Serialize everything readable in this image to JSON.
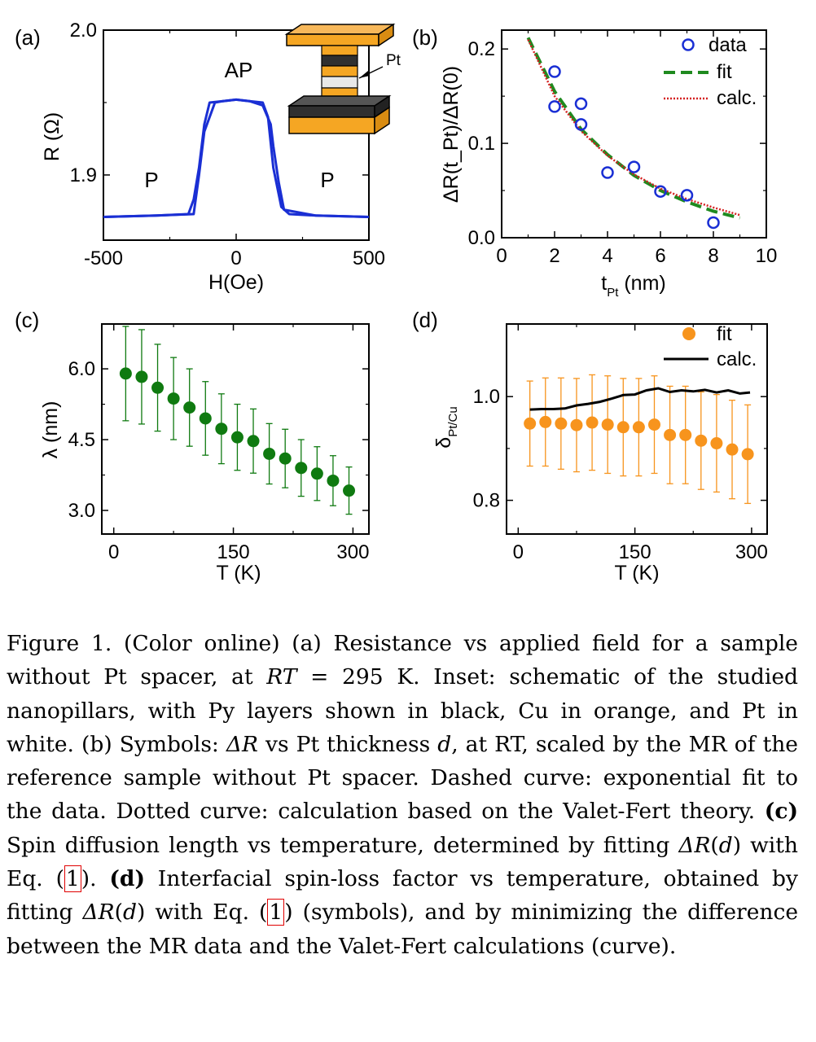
{
  "panels": {
    "a": {
      "label": "(a)",
      "xlabel": "H(Oe)",
      "ylabel": "R (Ω)",
      "annotations": [
        "AP",
        "P",
        "P"
      ],
      "inset_label": "Pt",
      "colors": {
        "line": "#1a2fd4",
        "cu": "#f5a623",
        "py": "#303030",
        "pt": "#e8e8e8"
      }
    },
    "b": {
      "label": "(b)",
      "xlabel": "t",
      "xlabel_sub": "Pt",
      "xlabel_unit": " (nm)",
      "ylabel": "ΔR(t_Pt)/ΔR(0)",
      "legend": [
        "data",
        "fit",
        "calc."
      ],
      "colors": {
        "data": "#1a2fd4",
        "fit": "#1f8a1f",
        "calc": "#d42020"
      }
    },
    "c": {
      "label": "(c)",
      "xlabel": "T (K)",
      "ylabel": "λ (nm)",
      "colors": {
        "marker": "#0f7a10"
      }
    },
    "d": {
      "label": "(d)",
      "xlabel": "T (K)",
      "ylabel": "δ",
      "ylabel_sub": "Pt/Cu",
      "legend": [
        "fit",
        "calc."
      ],
      "colors": {
        "marker": "#f7941d",
        "calc": "#000000"
      }
    }
  },
  "chart_data": [
    {
      "id": "a",
      "type": "line",
      "xlim": [
        -500,
        500
      ],
      "ylim": [
        1.855,
        2.0
      ],
      "xticks": [
        -500,
        0,
        500
      ],
      "yticks": [
        1.9,
        2.0
      ],
      "series": [
        {
          "x": [
            -500,
            -300,
            -180,
            -160,
            -140,
            -120,
            -100,
            -50,
            0,
            50,
            100,
            130,
            140,
            160,
            180,
            300,
            500
          ],
          "y": [
            1.871,
            1.872,
            1.873,
            1.883,
            1.905,
            1.935,
            1.95,
            1.951,
            1.952,
            1.951,
            1.948,
            1.935,
            1.92,
            1.895,
            1.876,
            1.872,
            1.871
          ]
        },
        {
          "x": [
            -500,
            -300,
            -160,
            -140,
            -120,
            -80,
            -50,
            0,
            50,
            100,
            120,
            140,
            170,
            200,
            300,
            500
          ],
          "y": [
            1.871,
            1.872,
            1.873,
            1.9,
            1.93,
            1.95,
            1.951,
            1.952,
            1.951,
            1.95,
            1.94,
            1.905,
            1.878,
            1.873,
            1.872,
            1.871
          ]
        }
      ]
    },
    {
      "id": "b",
      "type": "scatter",
      "xlim": [
        0,
        10
      ],
      "ylim": [
        0,
        0.22
      ],
      "xticks": [
        0,
        2,
        4,
        6,
        8,
        10
      ],
      "yticks": [
        0.0,
        0.1,
        0.2
      ],
      "series": [
        {
          "name": "data",
          "x": [
            2,
            2,
            3,
            3,
            4,
            5,
            6,
            7,
            8
          ],
          "y": [
            0.176,
            0.139,
            0.142,
            0.12,
            0.069,
            0.075,
            0.049,
            0.045,
            0.016
          ]
        },
        {
          "name": "fit",
          "type": "line",
          "x": [
            1,
            2,
            3,
            4,
            5,
            6,
            7,
            8,
            9
          ],
          "y": [
            0.212,
            0.155,
            0.115,
            0.088,
            0.066,
            0.05,
            0.038,
            0.028,
            0.021
          ]
        },
        {
          "name": "calc.",
          "type": "line",
          "x": [
            1,
            2,
            3,
            4,
            5,
            6,
            7,
            8,
            9
          ],
          "y": [
            0.21,
            0.15,
            0.113,
            0.087,
            0.067,
            0.052,
            0.041,
            0.032,
            0.024
          ]
        }
      ]
    },
    {
      "id": "c",
      "type": "scatter",
      "xlim": [
        -15,
        320
      ],
      "ylim": [
        2.5,
        6.95
      ],
      "xticks": [
        0,
        150,
        300
      ],
      "yticks": [
        3.0,
        4.5,
        6.0
      ],
      "series": [
        {
          "x": [
            15,
            35,
            55,
            75,
            95,
            115,
            135,
            155,
            175,
            195,
            215,
            235,
            255,
            275,
            295
          ],
          "y": [
            5.9,
            5.83,
            5.6,
            5.37,
            5.18,
            4.95,
            4.73,
            4.55,
            4.47,
            4.2,
            4.1,
            3.9,
            3.78,
            3.63,
            3.42
          ],
          "err": [
            1.0,
            1.0,
            0.92,
            0.87,
            0.82,
            0.78,
            0.74,
            0.7,
            0.68,
            0.64,
            0.62,
            0.6,
            0.57,
            0.53,
            0.5
          ]
        }
      ]
    },
    {
      "id": "d",
      "type": "scatter",
      "xlim": [
        -15,
        320
      ],
      "ylim": [
        0.735,
        1.14
      ],
      "xticks": [
        0,
        150,
        300
      ],
      "yticks": [
        0.8,
        1.0
      ],
      "series": [
        {
          "name": "fit",
          "x": [
            15,
            35,
            55,
            75,
            95,
            115,
            135,
            155,
            175,
            195,
            215,
            235,
            255,
            275,
            295
          ],
          "y": [
            0.948,
            0.951,
            0.948,
            0.945,
            0.95,
            0.946,
            0.941,
            0.941,
            0.946,
            0.926,
            0.926,
            0.915,
            0.91,
            0.898,
            0.889
          ],
          "err": [
            0.082,
            0.085,
            0.088,
            0.09,
            0.092,
            0.094,
            0.094,
            0.094,
            0.094,
            0.094,
            0.094,
            0.094,
            0.094,
            0.095,
            0.095
          ]
        },
        {
          "name": "calc.",
          "type": "line",
          "x": [
            15,
            30,
            45,
            60,
            75,
            90,
            105,
            120,
            135,
            150,
            165,
            180,
            195,
            210,
            225,
            240,
            255,
            270,
            285,
            298
          ],
          "y": [
            0.975,
            0.976,
            0.976,
            0.977,
            0.983,
            0.986,
            0.99,
            0.996,
            1.003,
            1.004,
            1.012,
            1.016,
            1.009,
            1.012,
            1.01,
            1.013,
            1.008,
            1.012,
            1.006,
            1.008
          ]
        }
      ]
    }
  ],
  "caption": {
    "p1": "Figure 1.   (Color online) (a) Resistance vs applied field for a sample without Pt spacer, at ",
    "rt": "RT",
    "p2": " = 295 K. Inset: schematic of the studied nanopillars, with Py layers shown in black, Cu in orange, and Pt in white. (b) Symbols: ",
    "dr1": "ΔR",
    "p3": " vs Pt thickness ",
    "d1": "d",
    "p4": ", at RT, scaled by the MR of the reference sample without Pt spacer. Dashed curve: exponential fit to the data. Dotted curve: calculation based on the Valet-Fert theory. ",
    "c_lbl": "(c)",
    "p5": " Spin diffusion length vs temperature, determined by fitting ",
    "dr2": "ΔR",
    "p6": "(",
    "d2": "d",
    "p7": ") with Eq. ",
    "ref1": "1",
    "p8": ". ",
    "d_lbl": "(d)",
    "p9": " Interfacial spin-loss factor vs temperature, obtained by fitting ",
    "dr3": "ΔR",
    "p10": "(",
    "d3": "d",
    "p11": ") with Eq. (",
    "ref2": "1",
    "p12": ") (symbols), and by minimizing the difference between the MR data and the Valet-Fert calculations (curve)."
  }
}
